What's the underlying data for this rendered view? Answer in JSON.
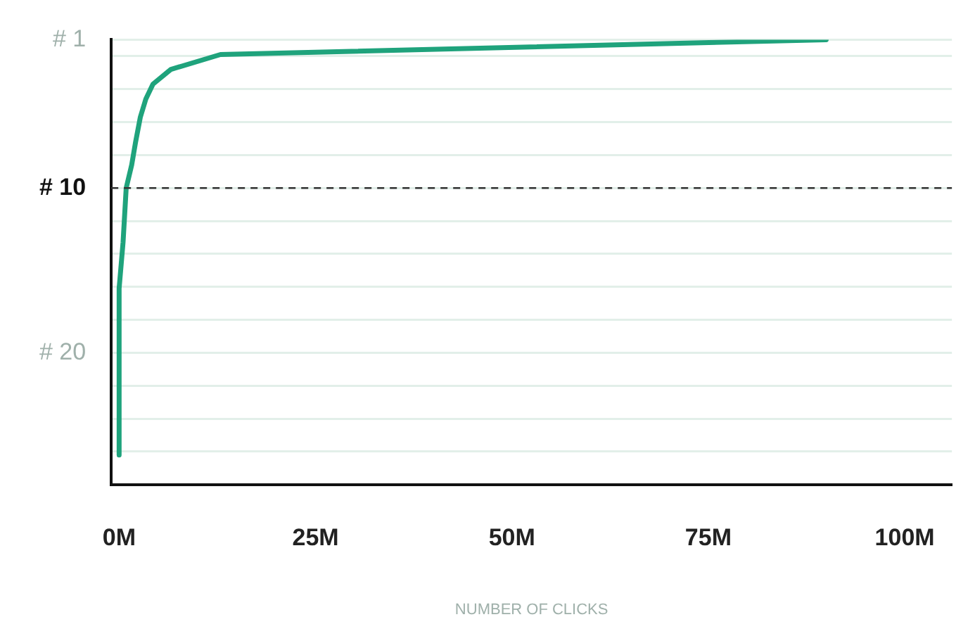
{
  "chart_data": {
    "type": "line",
    "xlabel": "NUMBER OF CLICKS",
    "x": [
      0,
      0,
      0.5,
      0.9,
      1.6,
      2.1,
      2.7,
      3.4,
      4.3,
      6.6,
      12.9,
      90
    ],
    "series": [
      {
        "color": "#1fa37c",
        "values": [
          26.2,
          16.1,
          13.3,
          10,
          8.6,
          7.2,
          5.7,
          4.6,
          3.7,
          2.8,
          1.9,
          1
        ]
      }
    ],
    "xlim": [
      -1,
      106
    ],
    "xticks": [
      {
        "value": 0,
        "label": "0M"
      },
      {
        "value": 25,
        "label": "25M"
      },
      {
        "value": 50,
        "label": "50M"
      },
      {
        "value": 75,
        "label": "75M"
      },
      {
        "value": 100,
        "label": "100M"
      }
    ],
    "ylim": [
      28,
      1
    ],
    "yticks": [
      {
        "value": 1,
        "label": "# 1"
      },
      {
        "value": 2,
        "label": null
      },
      {
        "value": 4,
        "label": null
      },
      {
        "value": 6,
        "label": null
      },
      {
        "value": 8,
        "label": null
      },
      {
        "value": 10,
        "label": "# 10"
      },
      {
        "value": 12,
        "label": null
      },
      {
        "value": 14,
        "label": null
      },
      {
        "value": 16,
        "label": null
      },
      {
        "value": 18,
        "label": null
      },
      {
        "value": 20,
        "label": "# 20"
      },
      {
        "value": 22,
        "label": null
      },
      {
        "value": 24,
        "label": null
      },
      {
        "value": 26,
        "label": null
      }
    ],
    "ref_lines": [
      {
        "axis": "y",
        "value": 10,
        "color": "#333333",
        "line_style": "dashed"
      }
    ],
    "grid": "y",
    "legend": false,
    "marker": "none",
    "line_style": "solid"
  }
}
